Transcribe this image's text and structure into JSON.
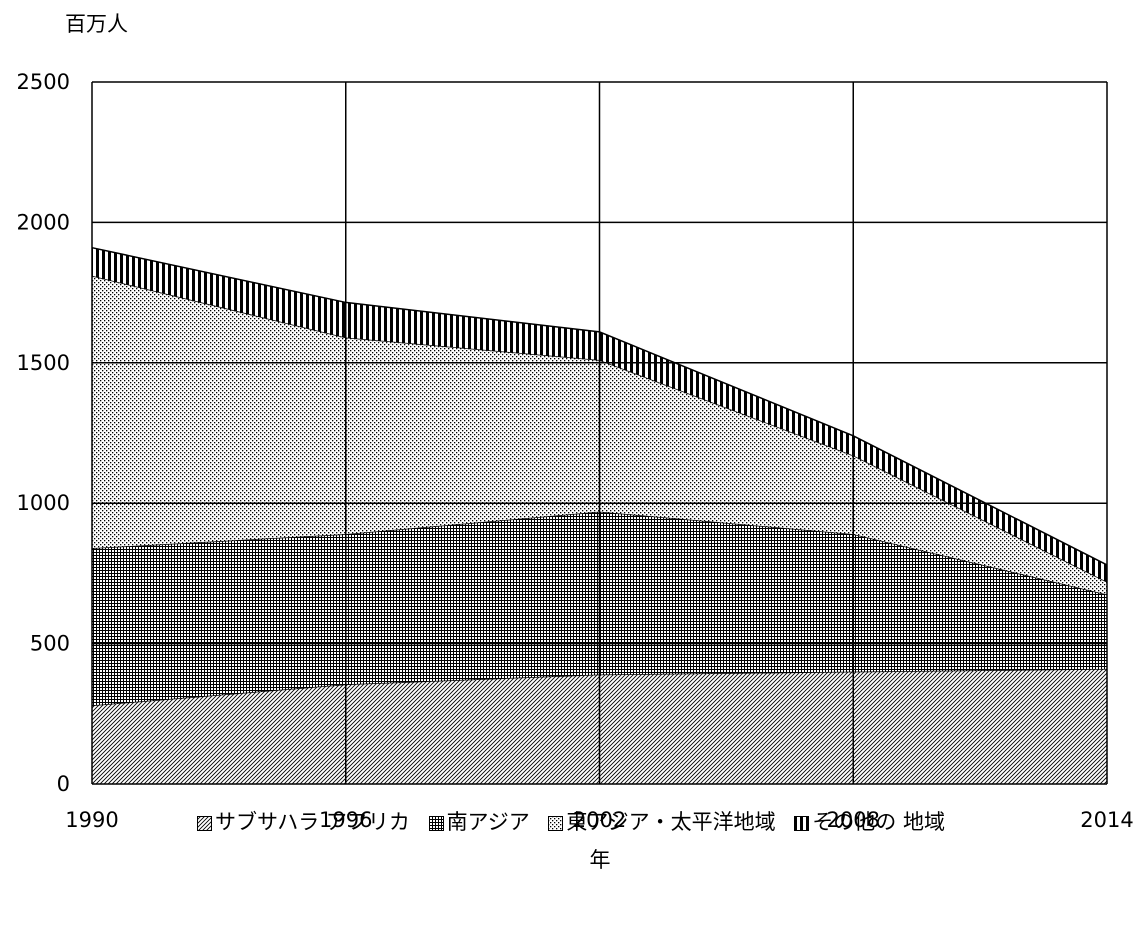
{
  "chart_data": {
    "type": "area",
    "stacked": true,
    "ylabel": "百万人",
    "xlabel": "年",
    "x": [
      1990,
      1996,
      2002,
      2008,
      2014
    ],
    "ylim": [
      0,
      2500
    ],
    "yticks": [
      0,
      500,
      1000,
      1500,
      2000,
      2500
    ],
    "grid": true,
    "legend_position": "bottom",
    "series": [
      {
        "name": "サブサハラ アフリカ",
        "values": [
          280,
          355,
          390,
          400,
          410
        ]
      },
      {
        "name": "南アジア",
        "values": [
          560,
          535,
          580,
          490,
          265
        ]
      },
      {
        "name": "東アジア・太平洋地域",
        "values": [
          970,
          700,
          540,
          280,
          45
        ]
      },
      {
        "name": "その他の 地域",
        "values": [
          100,
          125,
          100,
          70,
          60
        ]
      }
    ]
  },
  "legend": [
    {
      "key": "サブサハラ アフリカ",
      "pattern": "diag"
    },
    {
      "key": "南アジア",
      "pattern": "grid"
    },
    {
      "key": "東アジア・太平洋地域",
      "pattern": "dots"
    },
    {
      "key": "その他の 地域",
      "pattern": "vert"
    }
  ]
}
